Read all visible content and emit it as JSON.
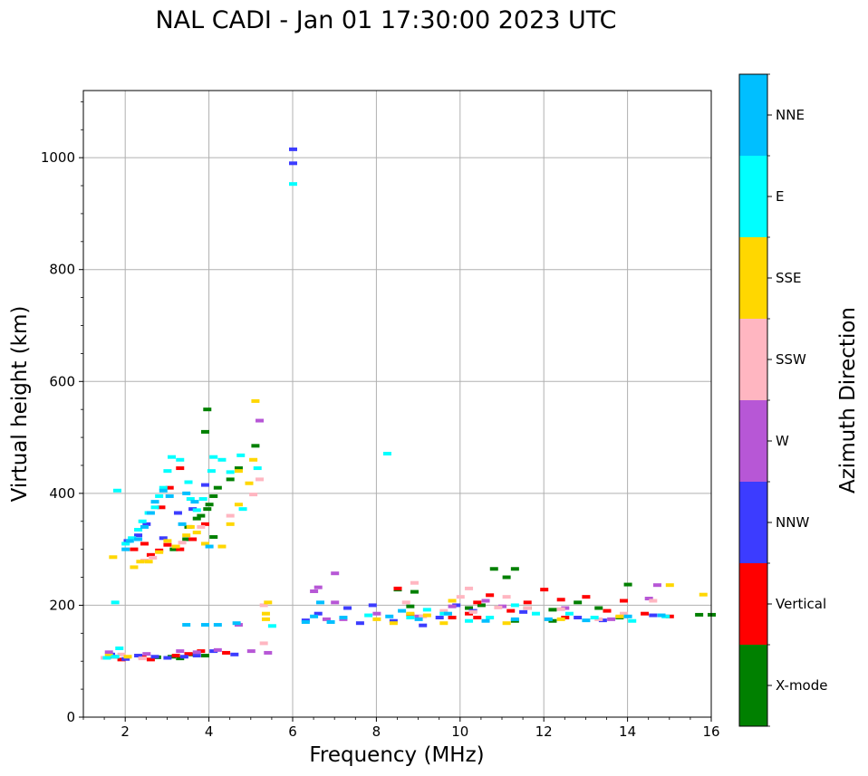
{
  "chart_data": {
    "type": "scatter",
    "title": "NAL CADI - Jan 01 17:30:00 2023 UTC",
    "xlabel": "Frequency (MHz)",
    "ylabel": "Virtual height (km)",
    "xlim": [
      1,
      16
    ],
    "ylim": [
      0,
      1120
    ],
    "xticks": [
      2,
      4,
      6,
      8,
      10,
      12,
      14,
      16
    ],
    "yticks": [
      0,
      200,
      400,
      600,
      800,
      1000
    ],
    "grid": true,
    "colorbar": {
      "label": "Azimuth Direction",
      "entries": [
        {
          "name": "X-mode",
          "color": "#008000"
        },
        {
          "name": "Vertical",
          "color": "#ff0000"
        },
        {
          "name": "NNW",
          "color": "#3c3cff"
        },
        {
          "name": "W",
          "color": "#b757d6"
        },
        {
          "name": "SSW",
          "color": "#ffb6c1"
        },
        {
          "name": "SSE",
          "color": "#ffd700"
        },
        {
          "name": "E",
          "color": "#00ffff"
        },
        {
          "name": "NNE",
          "color": "#00bfff"
        }
      ]
    },
    "series": [
      {
        "name": "X-mode",
        "points": [
          [
            2.75,
            107
          ],
          [
            3.1,
            108
          ],
          [
            3.3,
            105
          ],
          [
            3.6,
            112
          ],
          [
            3.9,
            110
          ],
          [
            3.15,
            300
          ],
          [
            3.45,
            318
          ],
          [
            3.5,
            340
          ],
          [
            3.7,
            355
          ],
          [
            3.8,
            360
          ],
          [
            3.95,
            372
          ],
          [
            4.0,
            380
          ],
          [
            4.1,
            395
          ],
          [
            4.2,
            410
          ],
          [
            4.5,
            425
          ],
          [
            4.7,
            445
          ],
          [
            5.1,
            485
          ],
          [
            3.9,
            510
          ],
          [
            3.95,
            550
          ],
          [
            4.1,
            322
          ],
          [
            8.5,
            228
          ],
          [
            8.9,
            224
          ],
          [
            8.8,
            198
          ],
          [
            10.2,
            195
          ],
          [
            10.5,
            200
          ],
          [
            10.8,
            265
          ],
          [
            11.1,
            250
          ],
          [
            11.3,
            265
          ],
          [
            11.6,
            195
          ],
          [
            12.2,
            192
          ],
          [
            12.8,
            205
          ],
          [
            13.3,
            195
          ],
          [
            13.8,
            178
          ],
          [
            14.0,
            237
          ],
          [
            15.7,
            183
          ],
          [
            16.0,
            183
          ],
          [
            11.3,
            172
          ],
          [
            12.2,
            172
          ]
        ]
      },
      {
        "name": "Vertical",
        "points": [
          [
            1.7,
            108
          ],
          [
            1.9,
            103
          ],
          [
            2.4,
            108
          ],
          [
            2.6,
            103
          ],
          [
            3.2,
            110
          ],
          [
            3.5,
            113
          ],
          [
            3.8,
            118
          ],
          [
            4.4,
            115
          ],
          [
            2.2,
            300
          ],
          [
            2.45,
            310
          ],
          [
            2.6,
            290
          ],
          [
            2.8,
            298
          ],
          [
            3.0,
            308
          ],
          [
            3.3,
            300
          ],
          [
            3.6,
            318
          ],
          [
            3.9,
            345
          ],
          [
            2.85,
            375
          ],
          [
            3.05,
            410
          ],
          [
            3.3,
            445
          ],
          [
            9.8,
            178
          ],
          [
            10.2,
            185
          ],
          [
            10.4,
            205
          ],
          [
            10.7,
            218
          ],
          [
            11.2,
            190
          ],
          [
            11.6,
            205
          ],
          [
            12.0,
            228
          ],
          [
            12.4,
            210
          ],
          [
            13.0,
            215
          ],
          [
            13.5,
            190
          ],
          [
            13.9,
            208
          ],
          [
            14.4,
            185
          ],
          [
            15.0,
            180
          ],
          [
            10.4,
            178
          ],
          [
            12.5,
            178
          ],
          [
            8.5,
            230
          ],
          [
            8.8,
            183
          ]
        ]
      },
      {
        "name": "NNW",
        "points": [
          [
            1.65,
            112
          ],
          [
            2.0,
            104
          ],
          [
            2.3,
            110
          ],
          [
            2.7,
            108
          ],
          [
            3.0,
            106
          ],
          [
            3.4,
            108
          ],
          [
            3.7,
            110
          ],
          [
            4.1,
            118
          ],
          [
            4.6,
            112
          ],
          [
            2.05,
            315
          ],
          [
            2.3,
            325
          ],
          [
            2.5,
            345
          ],
          [
            2.9,
            320
          ],
          [
            3.25,
            365
          ],
          [
            3.6,
            372
          ],
          [
            3.9,
            415
          ],
          [
            6.0,
            1015
          ],
          [
            6.0,
            990
          ],
          [
            6.3,
            173
          ],
          [
            6.6,
            185
          ],
          [
            7.3,
            195
          ],
          [
            7.6,
            168
          ],
          [
            7.9,
            200
          ],
          [
            8.4,
            172
          ],
          [
            9.1,
            164
          ],
          [
            9.5,
            178
          ],
          [
            9.9,
            200
          ],
          [
            10.3,
            190
          ],
          [
            11.5,
            188
          ],
          [
            12.8,
            178
          ],
          [
            13.4,
            173
          ],
          [
            14.6,
            182
          ]
        ]
      },
      {
        "name": "W",
        "points": [
          [
            1.6,
            116
          ],
          [
            2.5,
            113
          ],
          [
            3.3,
            118
          ],
          [
            3.7,
            116
          ],
          [
            4.2,
            120
          ],
          [
            5.0,
            118
          ],
          [
            5.4,
            115
          ],
          [
            4.7,
            165
          ],
          [
            6.5,
            225
          ],
          [
            6.6,
            232
          ],
          [
            6.8,
            175
          ],
          [
            7.0,
            257
          ],
          [
            7.0,
            205
          ],
          [
            7.2,
            175
          ],
          [
            8.0,
            185
          ],
          [
            9.0,
            180
          ],
          [
            9.8,
            198
          ],
          [
            10.6,
            208
          ],
          [
            11.0,
            198
          ],
          [
            12.5,
            195
          ],
          [
            13.6,
            175
          ],
          [
            14.5,
            212
          ],
          [
            14.7,
            236
          ],
          [
            5.2,
            530
          ]
        ]
      },
      {
        "name": "SSW",
        "points": [
          [
            1.5,
            106
          ],
          [
            1.9,
            112
          ],
          [
            2.4,
            105
          ],
          [
            2.45,
            280
          ],
          [
            2.65,
            285
          ],
          [
            3.35,
            312
          ],
          [
            3.8,
            340
          ],
          [
            4.5,
            360
          ],
          [
            5.05,
            398
          ],
          [
            5.2,
            425
          ],
          [
            5.3,
            132
          ],
          [
            5.3,
            200
          ],
          [
            8.7,
            205
          ],
          [
            9.1,
            180
          ],
          [
            9.6,
            190
          ],
          [
            10.0,
            215
          ],
          [
            10.3,
            188
          ],
          [
            10.9,
            196
          ],
          [
            11.6,
            195
          ],
          [
            12.4,
            193
          ],
          [
            13.3,
            175
          ],
          [
            13.9,
            185
          ],
          [
            8.9,
            240
          ],
          [
            10.2,
            230
          ],
          [
            11.1,
            215
          ],
          [
            14.6,
            208
          ]
        ]
      },
      {
        "name": "SSE",
        "points": [
          [
            1.7,
            286
          ],
          [
            1.6,
            110
          ],
          [
            2.05,
            108
          ],
          [
            2.35,
            278
          ],
          [
            2.55,
            278
          ],
          [
            2.8,
            295
          ],
          [
            3.0,
            315
          ],
          [
            3.2,
            305
          ],
          [
            3.45,
            325
          ],
          [
            3.55,
            340
          ],
          [
            3.7,
            330
          ],
          [
            3.9,
            310
          ],
          [
            4.3,
            305
          ],
          [
            4.5,
            345
          ],
          [
            4.7,
            380
          ],
          [
            4.7,
            440
          ],
          [
            4.95,
            418
          ],
          [
            5.05,
            460
          ],
          [
            5.1,
            565
          ],
          [
            5.35,
            185
          ],
          [
            5.35,
            175
          ],
          [
            5.4,
            205
          ],
          [
            8.0,
            175
          ],
          [
            8.4,
            168
          ],
          [
            8.8,
            185
          ],
          [
            9.2,
            182
          ],
          [
            9.6,
            168
          ],
          [
            9.8,
            208
          ],
          [
            11.1,
            168
          ],
          [
            12.4,
            175
          ],
          [
            13.8,
            180
          ],
          [
            15.0,
            236
          ],
          [
            15.8,
            219
          ],
          [
            2.2,
            268
          ]
        ]
      },
      {
        "name": "E",
        "points": [
          [
            1.55,
            106
          ],
          [
            1.75,
            108
          ],
          [
            1.75,
            205
          ],
          [
            1.85,
            123
          ],
          [
            2.0,
            310
          ],
          [
            2.15,
            320
          ],
          [
            2.3,
            335
          ],
          [
            2.4,
            350
          ],
          [
            2.55,
            365
          ],
          [
            2.7,
            375
          ],
          [
            2.8,
            395
          ],
          [
            2.9,
            410
          ],
          [
            3.0,
            440
          ],
          [
            3.1,
            465
          ],
          [
            3.3,
            460
          ],
          [
            3.5,
            420
          ],
          [
            3.55,
            390
          ],
          [
            3.7,
            370
          ],
          [
            3.85,
            390
          ],
          [
            4.05,
            440
          ],
          [
            4.1,
            465
          ],
          [
            4.3,
            460
          ],
          [
            4.5,
            438
          ],
          [
            4.75,
            468
          ],
          [
            5.15,
            445
          ],
          [
            4.8,
            372
          ],
          [
            5.5,
            163
          ],
          [
            6.0,
            953
          ],
          [
            8.25,
            471
          ],
          [
            7.8,
            182
          ],
          [
            8.8,
            178
          ],
          [
            9.2,
            192
          ],
          [
            9.6,
            185
          ],
          [
            10.2,
            172
          ],
          [
            10.7,
            178
          ],
          [
            11.3,
            200
          ],
          [
            11.8,
            185
          ],
          [
            12.6,
            185
          ],
          [
            13.2,
            178
          ],
          [
            14.1,
            172
          ],
          [
            14.9,
            180
          ],
          [
            1.8,
            405
          ]
        ]
      },
      {
        "name": "NNE",
        "points": [
          [
            2.0,
            300
          ],
          [
            2.1,
            315
          ],
          [
            2.3,
            318
          ],
          [
            2.45,
            340
          ],
          [
            2.6,
            365
          ],
          [
            2.7,
            385
          ],
          [
            2.9,
            405
          ],
          [
            3.05,
            395
          ],
          [
            3.35,
            345
          ],
          [
            3.45,
            400
          ],
          [
            3.65,
            385
          ],
          [
            4.0,
            305
          ],
          [
            3.9,
            165
          ],
          [
            4.2,
            165
          ],
          [
            4.65,
            168
          ],
          [
            3.45,
            165
          ],
          [
            6.3,
            170
          ],
          [
            6.5,
            180
          ],
          [
            6.65,
            205
          ],
          [
            6.9,
            170
          ],
          [
            7.2,
            178
          ],
          [
            8.3,
            180
          ],
          [
            8.6,
            190
          ],
          [
            9.0,
            175
          ],
          [
            9.7,
            185
          ],
          [
            10.6,
            172
          ],
          [
            11.3,
            175
          ],
          [
            12.1,
            175
          ],
          [
            13.0,
            173
          ],
          [
            14.0,
            180
          ],
          [
            14.8,
            182
          ]
        ]
      }
    ]
  }
}
